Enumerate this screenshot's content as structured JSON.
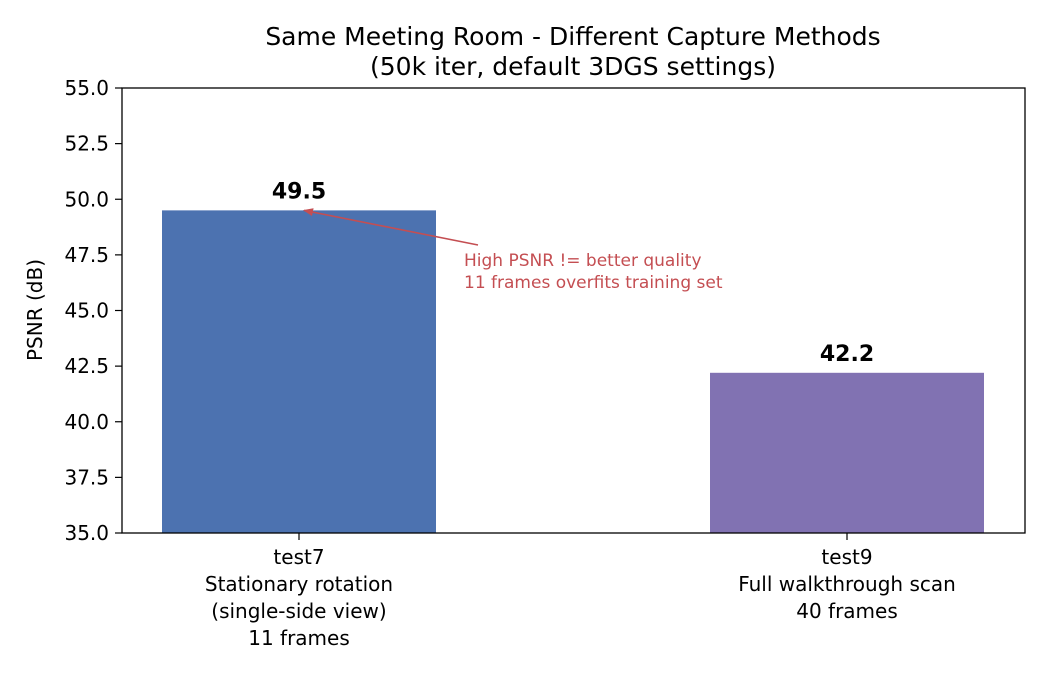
{
  "chart_data": {
    "type": "bar",
    "title": [
      "Same Meeting Room - Different Capture Methods",
      "(50k iter, default 3DGS settings)"
    ],
    "ylabel": "PSNR (dB)",
    "xlabel": "",
    "ylim": [
      35.0,
      55.0
    ],
    "yticks": [
      "35.0",
      "37.5",
      "40.0",
      "42.5",
      "45.0",
      "47.5",
      "50.0",
      "52.5",
      "55.0"
    ],
    "grid": false,
    "categories": [
      [
        "test7",
        "Stationary rotation",
        "(single-side view)",
        "11 frames"
      ],
      [
        "test9",
        "Full walkthrough scan",
        "40 frames"
      ]
    ],
    "values": [
      49.5,
      42.2
    ],
    "value_labels": [
      "49.5",
      "42.2"
    ],
    "colors": [
      "#4c72b0",
      "#8172b2"
    ],
    "annotation": {
      "lines": [
        "High PSNR != better quality",
        "11 frames overfits training set"
      ],
      "color": "#c44e52",
      "points_to_bar": 0
    }
  }
}
